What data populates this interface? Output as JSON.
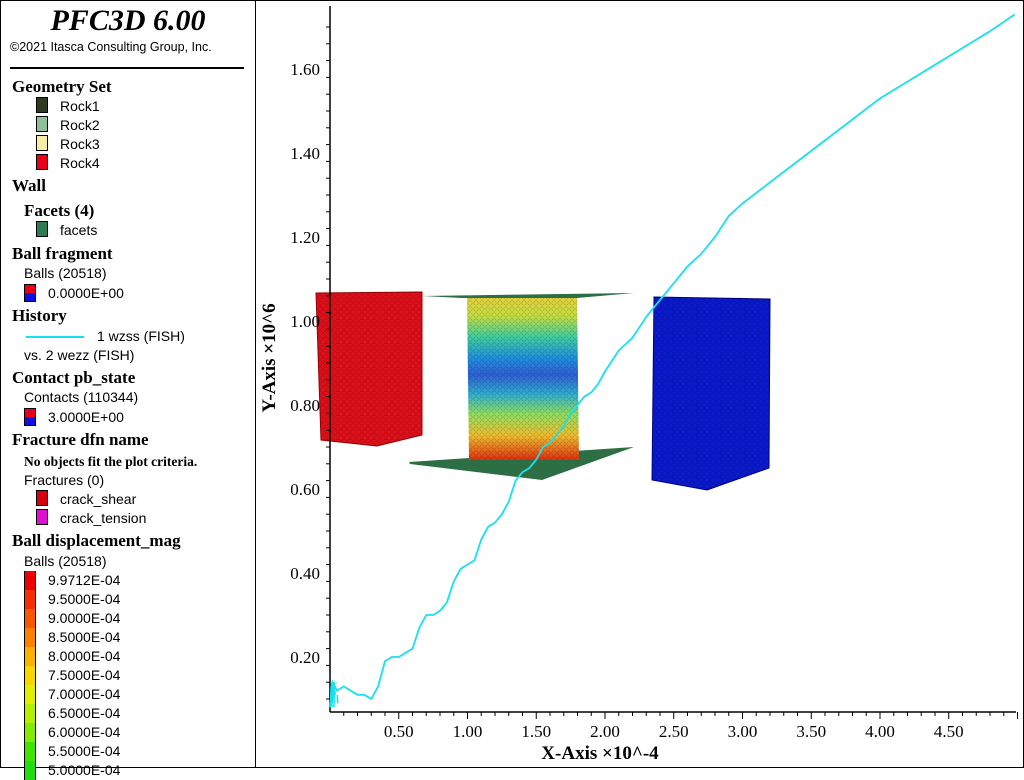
{
  "app": {
    "title": "PFC3D 6.00",
    "copyright": "©2021 Itasca Consulting Group, Inc."
  },
  "legend": {
    "geometry_set": {
      "heading": "Geometry Set",
      "items": [
        {
          "label": "Rock1",
          "color": "#2f3a1e"
        },
        {
          "label": "Rock2",
          "color": "#8fbf98"
        },
        {
          "label": "Rock3",
          "color": "#f7eea0"
        },
        {
          "label": "Rock4",
          "color": "#e8001a"
        }
      ]
    },
    "wall": {
      "heading": "Wall",
      "facets_heading": "Facets (4)",
      "facets_label": "facets",
      "facets_color": "#2e7d52"
    },
    "ball_fragment": {
      "heading": "Ball fragment",
      "balls": "Balls (20518)",
      "value": "0.0000E+00"
    },
    "history": {
      "heading": "History",
      "line_label": "1 wzss (FISH)",
      "vs_label": "vs. 2 wezz (FISH)",
      "line_color": "#18e0f0"
    },
    "contact": {
      "heading": "Contact pb_state",
      "contacts": "Contacts (110344)",
      "value": "3.0000E+00"
    },
    "fracture": {
      "heading": "Fracture dfn name",
      "note": "No objects fit the plot criteria.",
      "fractures": "Fractures (0)",
      "items": [
        {
          "label": "crack_shear",
          "color": "#d60010"
        },
        {
          "label": "crack_tension",
          "color": "#e010d0"
        }
      ]
    },
    "displacement": {
      "heading": "Ball displacement_mag",
      "balls": "Balls (20518)",
      "items": [
        {
          "label": "9.9712E-04",
          "color": "#ee0000"
        },
        {
          "label": "9.5000E-04",
          "color": "#f43000"
        },
        {
          "label": "9.0000E-04",
          "color": "#f85800"
        },
        {
          "label": "8.5000E-04",
          "color": "#fa8200"
        },
        {
          "label": "8.0000E-04",
          "color": "#fcb000"
        },
        {
          "label": "7.5000E-04",
          "color": "#f6d800"
        },
        {
          "label": "7.0000E-04",
          "color": "#e0ee00"
        },
        {
          "label": "6.5000E-04",
          "color": "#b4ee00"
        },
        {
          "label": "6.0000E-04",
          "color": "#84ea00"
        },
        {
          "label": "5.5000E-04",
          "color": "#40e400"
        },
        {
          "label": "5.0000E-04",
          "color": "#20dc10"
        }
      ]
    }
  },
  "chart_data": {
    "type": "line",
    "title": "",
    "xlabel": "X-Axis ×10^-4",
    "ylabel": "Y-Axis ×10^6",
    "xlim": [
      0,
      5.0
    ],
    "ylim": [
      0.05,
      1.75
    ],
    "x_ticks": [
      "0.50",
      "1.00",
      "1.50",
      "2.00",
      "2.50",
      "3.00",
      "3.50",
      "4.00",
      "4.50"
    ],
    "y_ticks": [
      "0.20",
      "0.40",
      "0.60",
      "0.80",
      "1.00",
      "1.20",
      "1.40",
      "1.60"
    ],
    "series": [
      {
        "name": "1 wzss (FISH)",
        "color": "#18e0f0",
        "x": [
          0.0,
          0.02,
          0.05,
          0.1,
          0.15,
          0.2,
          0.25,
          0.3,
          0.35,
          0.4,
          0.45,
          0.5,
          0.55,
          0.6,
          0.65,
          0.7,
          0.75,
          0.8,
          0.85,
          0.9,
          0.95,
          1.0,
          1.05,
          1.1,
          1.15,
          1.2,
          1.25,
          1.3,
          1.35,
          1.4,
          1.45,
          1.5,
          1.55,
          1.6,
          1.65,
          1.7,
          1.75,
          1.8,
          1.85,
          1.9,
          1.95,
          2.0,
          2.1,
          2.2,
          2.3,
          2.4,
          2.5,
          2.6,
          2.7,
          2.8,
          2.9,
          3.0,
          3.2,
          3.4,
          3.6,
          3.8,
          4.0,
          4.2,
          4.4,
          4.6,
          4.8,
          4.98
        ],
        "values": [
          0.08,
          0.14,
          0.12,
          0.13,
          0.12,
          0.11,
          0.11,
          0.1,
          0.13,
          0.19,
          0.2,
          0.2,
          0.21,
          0.22,
          0.27,
          0.3,
          0.3,
          0.31,
          0.33,
          0.38,
          0.41,
          0.42,
          0.43,
          0.48,
          0.51,
          0.52,
          0.54,
          0.57,
          0.62,
          0.64,
          0.65,
          0.67,
          0.7,
          0.71,
          0.73,
          0.75,
          0.78,
          0.8,
          0.82,
          0.83,
          0.85,
          0.88,
          0.93,
          0.96,
          1.01,
          1.05,
          1.09,
          1.13,
          1.16,
          1.2,
          1.25,
          1.28,
          1.33,
          1.38,
          1.43,
          1.48,
          1.53,
          1.57,
          1.61,
          1.65,
          1.69,
          1.73
        ]
      }
    ]
  }
}
